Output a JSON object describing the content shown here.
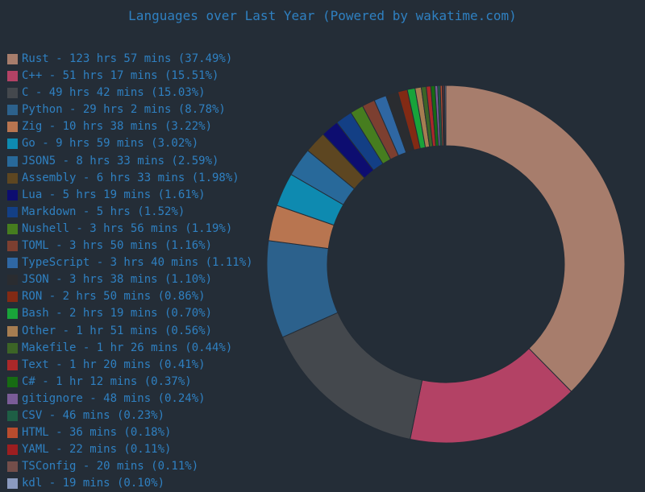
{
  "chart_data": {
    "type": "pie",
    "style": "donut",
    "title": "Languages over Last Year (Powered by wakatime.com)",
    "legend_position": "left",
    "slices": [
      {
        "label": "Rust - 123 hrs 57 mins (37.49%)",
        "name": "Rust",
        "percent": 37.49,
        "color": "#a77d6c"
      },
      {
        "label": "C++ - 51 hrs 17 mins (15.51%)",
        "name": "C++",
        "percent": 15.51,
        "color": "#b34265"
      },
      {
        "label": "C - 49 hrs 42 mins (15.03%)",
        "name": "C",
        "percent": 15.03,
        "color": "#44484d"
      },
      {
        "label": "Python - 29 hrs 2 mins (8.78%)",
        "name": "Python",
        "percent": 8.78,
        "color": "#2c618c"
      },
      {
        "label": "Zig - 10 hrs 38 mins (3.22%)",
        "name": "Zig",
        "percent": 3.22,
        "color": "#b87550"
      },
      {
        "label": "Go - 9 hrs 59 mins (3.02%)",
        "name": "Go",
        "percent": 3.02,
        "color": "#0e8ab0"
      },
      {
        "label": "JSON5 - 8 hrs 33 mins (2.59%)",
        "name": "JSON5",
        "percent": 2.59,
        "color": "#28699a"
      },
      {
        "label": "Assembly - 6 hrs 33 mins (1.98%)",
        "name": "Assembly",
        "percent": 1.98,
        "color": "#5d4621"
      },
      {
        "label": "Lua - 5 hrs 19 mins (1.61%)",
        "name": "Lua",
        "percent": 1.61,
        "color": "#0d0d70"
      },
      {
        "label": "Markdown - 5 hrs (1.52%)",
        "name": "Markdown",
        "percent": 1.52,
        "color": "#133f85"
      },
      {
        "label": "Nushell - 3 hrs 56 mins (1.19%)",
        "name": "Nushell",
        "percent": 1.19,
        "color": "#467d1f"
      },
      {
        "label": "TOML - 3 hrs 50 mins (1.16%)",
        "name": "TOML",
        "percent": 1.16,
        "color": "#7c3f30"
      },
      {
        "label": "TypeScript - 3 hrs 40 mins (1.11%)",
        "name": "TypeScript",
        "percent": 1.11,
        "color": "#2f67a3"
      },
      {
        "label": "JSON - 3 hrs 38 mins (1.10%)",
        "name": "JSON",
        "percent": 1.1,
        "color": "#2a2c30"
      },
      {
        "label": "RON - 2 hrs 50 mins (0.86%)",
        "name": "RON",
        "percent": 0.86,
        "color": "#822a14"
      },
      {
        "label": "Bash - 2 hrs 19 mins (0.70%)",
        "name": "Bash",
        "percent": 0.7,
        "color": "#19a33a"
      },
      {
        "label": "Other - 1 hr 51 mins (0.56%)",
        "name": "Other",
        "percent": 0.56,
        "color": "#a67d51"
      },
      {
        "label": "Makefile - 1 hr 26 mins (0.44%)",
        "name": "Makefile",
        "percent": 0.44,
        "color": "#3c6426"
      },
      {
        "label": "Text - 1 hr 20 mins (0.41%)",
        "name": "Text",
        "percent": 0.41,
        "color": "#aa2829"
      },
      {
        "label": "C# - 1 hr 12 mins (0.37%)",
        "name": "C#",
        "percent": 0.37,
        "color": "#176b13"
      },
      {
        "label": "gitignore - 48 mins (0.24%)",
        "name": "gitignore",
        "percent": 0.24,
        "color": "#7a5c98"
      },
      {
        "label": "CSV - 46 mins (0.23%)",
        "name": "CSV",
        "percent": 0.23,
        "color": "#1e5e45"
      },
      {
        "label": "HTML - 36 mins (0.18%)",
        "name": "HTML",
        "percent": 0.18,
        "color": "#b84c2e"
      },
      {
        "label": "YAML - 22 mins (0.11%)",
        "name": "YAML",
        "percent": 0.11,
        "color": "#9c1e20"
      },
      {
        "label": "TSConfig - 20 mins (0.11%)",
        "name": "TSConfig",
        "percent": 0.11,
        "color": "#734e4a"
      },
      {
        "label": "kdl - 19 mins (0.10%)",
        "name": "kdl",
        "percent": 0.1,
        "color": "#8a9abf"
      }
    ]
  },
  "colors": {
    "background": "#242d37",
    "text": "#2f80c1",
    "slice_separator": "#242d37"
  }
}
